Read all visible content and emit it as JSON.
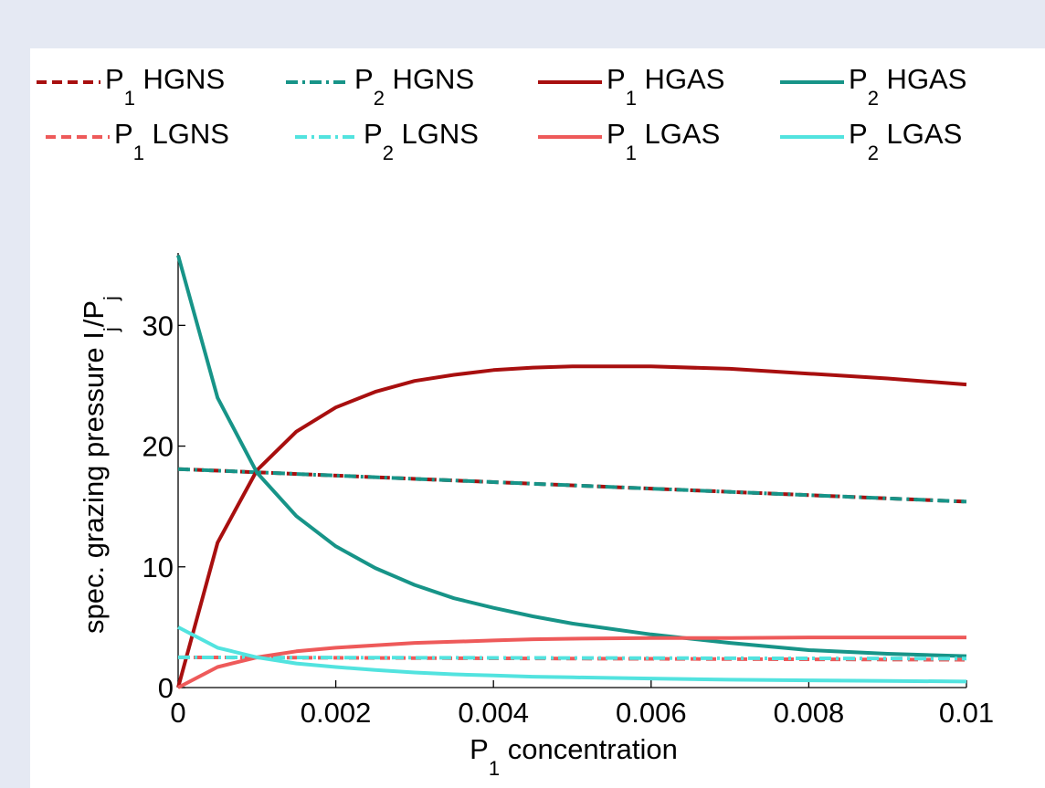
{
  "chart_data": {
    "type": "line",
    "xlabel": {
      "main": "P",
      "sub": "1",
      "rest": " concentration"
    },
    "ylabel": {
      "main": "spec. grazing pressure I",
      "sub1": "j",
      "mid": "/P",
      "sub2": "j"
    },
    "xlim": [
      0,
      0.01
    ],
    "ylim": [
      0,
      36
    ],
    "xticks": [
      0,
      0.002,
      0.004,
      0.006,
      0.008,
      0.01
    ],
    "xtick_labels": [
      "0",
      "0.002",
      "0.004",
      "0.006",
      "0.008",
      "0.01"
    ],
    "yticks": [
      0,
      10,
      20,
      30
    ],
    "ytick_labels": [
      "0",
      "10",
      "20",
      "30"
    ],
    "grid": false,
    "legend_position": "top",
    "series": [
      {
        "name": "P1 HGNS",
        "label": {
          "main": "P",
          "sub": "1",
          "rest": " HGNS"
        },
        "color": "#a80f0f",
        "dash": "dashed",
        "x": [
          0,
          0.01
        ],
        "y": [
          18.1,
          15.4
        ]
      },
      {
        "name": "P2 HGNS",
        "label": {
          "main": "P",
          "sub": "2",
          "rest": " HGNS"
        },
        "color": "#179488",
        "dash": "dashdot",
        "x": [
          0,
          0.01
        ],
        "y": [
          18.1,
          15.4
        ]
      },
      {
        "name": "P1 HGAS",
        "label": {
          "main": "P",
          "sub": "1",
          "rest": " HGAS"
        },
        "color": "#a80f0f",
        "dash": "solid",
        "x": [
          0,
          0.0005,
          0.001,
          0.0015,
          0.002,
          0.0025,
          0.003,
          0.0035,
          0.004,
          0.0045,
          0.005,
          0.006,
          0.007,
          0.008,
          0.009,
          0.01
        ],
        "y": [
          0,
          12.0,
          18.0,
          21.2,
          23.2,
          24.5,
          25.4,
          25.9,
          26.3,
          26.5,
          26.6,
          26.6,
          26.4,
          26.0,
          25.6,
          25.1
        ]
      },
      {
        "name": "P2 HGAS",
        "label": {
          "main": "P",
          "sub": "2",
          "rest": " HGAS"
        },
        "color": "#179488",
        "dash": "solid",
        "x": [
          0,
          0.0005,
          0.001,
          0.0015,
          0.002,
          0.0025,
          0.003,
          0.0035,
          0.004,
          0.0045,
          0.005,
          0.006,
          0.007,
          0.008,
          0.009,
          0.01
        ],
        "y": [
          35.8,
          24.0,
          17.8,
          14.2,
          11.7,
          9.9,
          8.5,
          7.4,
          6.6,
          5.9,
          5.3,
          4.4,
          3.7,
          3.1,
          2.8,
          2.6
        ]
      },
      {
        "name": "P1 LGNS",
        "label": {
          "main": "P",
          "sub": "1",
          "rest": " LGNS"
        },
        "color": "#ee5a5a",
        "dash": "dashed",
        "x": [
          0,
          0.01
        ],
        "y": [
          2.5,
          2.3
        ]
      },
      {
        "name": "P2 LGNS",
        "label": {
          "main": "P",
          "sub": "2",
          "rest": " LGNS"
        },
        "color": "#52e3df",
        "dash": "dashdot",
        "x": [
          0,
          0.01
        ],
        "y": [
          2.5,
          2.4
        ]
      },
      {
        "name": "P1 LGAS",
        "label": {
          "main": "P",
          "sub": "1",
          "rest": " LGAS"
        },
        "color": "#ee5a5a",
        "dash": "solid",
        "x": [
          0,
          0.0005,
          0.001,
          0.0015,
          0.002,
          0.0025,
          0.003,
          0.0035,
          0.004,
          0.0045,
          0.005,
          0.006,
          0.007,
          0.008,
          0.009,
          0.01
        ],
        "y": [
          0,
          1.7,
          2.5,
          3.0,
          3.3,
          3.5,
          3.7,
          3.8,
          3.9,
          4.0,
          4.05,
          4.1,
          4.1,
          4.15,
          4.15,
          4.15
        ]
      },
      {
        "name": "P2 LGAS",
        "label": {
          "main": "P",
          "sub": "2",
          "rest": " LGAS"
        },
        "color": "#52e3df",
        "dash": "solid",
        "x": [
          0,
          0.0005,
          0.001,
          0.0015,
          0.002,
          0.0025,
          0.003,
          0.0035,
          0.004,
          0.0045,
          0.005,
          0.006,
          0.007,
          0.008,
          0.009,
          0.01
        ],
        "y": [
          5.0,
          3.3,
          2.5,
          2.0,
          1.7,
          1.45,
          1.25,
          1.1,
          1.0,
          0.9,
          0.85,
          0.75,
          0.65,
          0.6,
          0.55,
          0.5
        ]
      }
    ]
  }
}
